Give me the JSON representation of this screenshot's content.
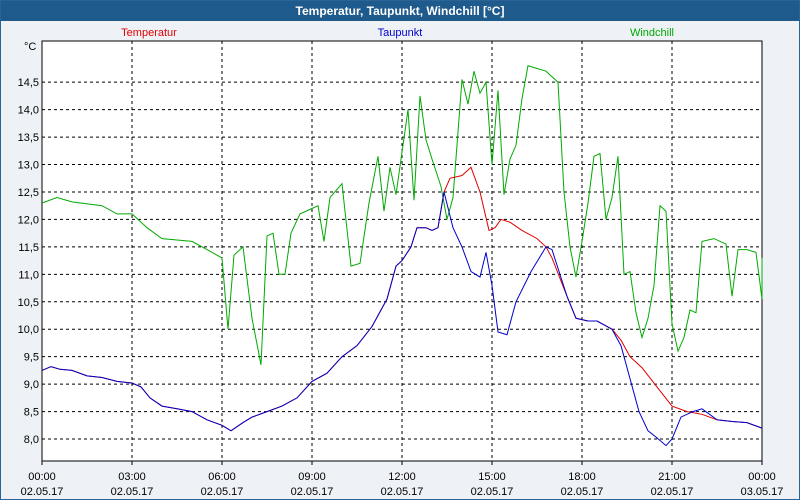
{
  "window": {
    "title": "Temperatur, Taupunkt, Windchill [°C]"
  },
  "chart_data": {
    "type": "line",
    "title": "Temperatur, Taupunkt, Windchill [°C]",
    "ylabel": "°C",
    "ylim": [
      7.6,
      15.25
    ],
    "yticks": [
      "8,0",
      "8,5",
      "9,0",
      "9,5",
      "10,0",
      "10,5",
      "11,0",
      "11,5",
      "12,0",
      "12,5",
      "13,0",
      "13,5",
      "14,0",
      "14,5"
    ],
    "xlim": [
      0,
      24
    ],
    "xticks": [
      {
        "time": "00:00",
        "date": "02.05.17"
      },
      {
        "time": "03:00",
        "date": "02.05.17"
      },
      {
        "time": "06:00",
        "date": "02.05.17"
      },
      {
        "time": "09:00",
        "date": "02.05.17"
      },
      {
        "time": "12:00",
        "date": "02.05.17"
      },
      {
        "time": "15:00",
        "date": "02.05.17"
      },
      {
        "time": "18:00",
        "date": "02.05.17"
      },
      {
        "time": "21:00",
        "date": "02.05.17"
      },
      {
        "time": "00:00",
        "date": "03.05.17"
      }
    ],
    "grid": true,
    "legend_position": "top",
    "series": [
      {
        "name": "Temperatur",
        "color": "#e00000",
        "points": [
          [
            0,
            9.25
          ],
          [
            0.3,
            9.32
          ],
          [
            0.6,
            9.27
          ],
          [
            1,
            9.25
          ],
          [
            1.5,
            9.15
          ],
          [
            2,
            9.12
          ],
          [
            2.5,
            9.05
          ],
          [
            3,
            9.02
          ],
          [
            3.3,
            8.95
          ],
          [
            3.6,
            8.75
          ],
          [
            4,
            8.6
          ],
          [
            4.5,
            8.55
          ],
          [
            5,
            8.5
          ],
          [
            5.5,
            8.35
          ],
          [
            6,
            8.25
          ],
          [
            6.3,
            8.15
          ],
          [
            6.7,
            8.3
          ],
          [
            7,
            8.4
          ],
          [
            7.5,
            8.5
          ],
          [
            8,
            8.6
          ],
          [
            8.5,
            8.75
          ],
          [
            9,
            9.05
          ],
          [
            9.5,
            9.2
          ],
          [
            10,
            9.5
          ],
          [
            10.5,
            9.7
          ],
          [
            11,
            10.05
          ],
          [
            11.5,
            10.55
          ],
          [
            11.8,
            11.15
          ],
          [
            12,
            11.25
          ],
          [
            12.3,
            11.5
          ],
          [
            12.5,
            11.85
          ],
          [
            12.8,
            11.85
          ],
          [
            13,
            11.8
          ],
          [
            13.2,
            11.85
          ],
          [
            13.4,
            12.5
          ],
          [
            13.6,
            12.75
          ],
          [
            14,
            12.8
          ],
          [
            14.3,
            12.95
          ],
          [
            14.6,
            12.5
          ],
          [
            14.9,
            11.8
          ],
          [
            15.1,
            11.85
          ],
          [
            15.3,
            12.0
          ],
          [
            15.6,
            11.95
          ],
          [
            16,
            11.8
          ],
          [
            16.5,
            11.65
          ],
          [
            16.8,
            11.5
          ],
          [
            17,
            11.3
          ],
          [
            17.5,
            10.6
          ],
          [
            17.8,
            10.2
          ],
          [
            18.2,
            10.15
          ],
          [
            18.5,
            10.15
          ],
          [
            19,
            10.0
          ],
          [
            19.3,
            9.8
          ],
          [
            19.6,
            9.5
          ],
          [
            20,
            9.3
          ],
          [
            20.5,
            8.95
          ],
          [
            21,
            8.6
          ],
          [
            21.5,
            8.5
          ],
          [
            22,
            8.45
          ],
          [
            22.5,
            8.35
          ],
          [
            23,
            8.32
          ],
          [
            23.5,
            8.3
          ],
          [
            24,
            8.2
          ]
        ]
      },
      {
        "name": "Taupunkt",
        "color": "#0000cc",
        "points": [
          [
            0,
            9.25
          ],
          [
            0.3,
            9.32
          ],
          [
            0.6,
            9.27
          ],
          [
            1,
            9.25
          ],
          [
            1.5,
            9.15
          ],
          [
            2,
            9.12
          ],
          [
            2.5,
            9.05
          ],
          [
            3,
            9.02
          ],
          [
            3.3,
            8.95
          ],
          [
            3.6,
            8.75
          ],
          [
            4,
            8.6
          ],
          [
            4.5,
            8.55
          ],
          [
            5,
            8.5
          ],
          [
            5.5,
            8.35
          ],
          [
            6,
            8.25
          ],
          [
            6.3,
            8.15
          ],
          [
            6.7,
            8.3
          ],
          [
            7,
            8.4
          ],
          [
            7.5,
            8.5
          ],
          [
            8,
            8.6
          ],
          [
            8.5,
            8.75
          ],
          [
            9,
            9.05
          ],
          [
            9.5,
            9.2
          ],
          [
            10,
            9.5
          ],
          [
            10.5,
            9.7
          ],
          [
            11,
            10.05
          ],
          [
            11.5,
            10.55
          ],
          [
            11.8,
            11.15
          ],
          [
            12,
            11.25
          ],
          [
            12.3,
            11.5
          ],
          [
            12.5,
            11.85
          ],
          [
            12.8,
            11.85
          ],
          [
            13,
            11.8
          ],
          [
            13.2,
            11.85
          ],
          [
            13.4,
            12.5
          ],
          [
            13.7,
            11.85
          ],
          [
            14,
            11.5
          ],
          [
            14.3,
            11.05
          ],
          [
            14.6,
            10.95
          ],
          [
            14.8,
            11.4
          ],
          [
            15,
            10.8
          ],
          [
            15.2,
            9.95
          ],
          [
            15.5,
            9.9
          ],
          [
            15.8,
            10.5
          ],
          [
            16.3,
            11.05
          ],
          [
            16.8,
            11.5
          ],
          [
            17,
            11.45
          ],
          [
            17.5,
            10.6
          ],
          [
            17.8,
            10.2
          ],
          [
            18.2,
            10.15
          ],
          [
            18.5,
            10.15
          ],
          [
            19,
            10.0
          ],
          [
            19.3,
            9.7
          ],
          [
            19.6,
            9.1
          ],
          [
            19.9,
            8.5
          ],
          [
            20.2,
            8.15
          ],
          [
            20.5,
            8.02
          ],
          [
            20.8,
            7.88
          ],
          [
            21,
            8.0
          ],
          [
            21.3,
            8.4
          ],
          [
            21.7,
            8.5
          ],
          [
            22,
            8.55
          ],
          [
            22.5,
            8.35
          ],
          [
            23,
            8.32
          ],
          [
            23.5,
            8.3
          ],
          [
            24,
            8.2
          ]
        ]
      },
      {
        "name": "Windchill",
        "color": "#00aa00",
        "points": [
          [
            0,
            12.3
          ],
          [
            0.5,
            12.4
          ],
          [
            1,
            12.32
          ],
          [
            2,
            12.25
          ],
          [
            2.5,
            12.1
          ],
          [
            3,
            12.1
          ],
          [
            3.5,
            11.85
          ],
          [
            4,
            11.65
          ],
          [
            5,
            11.6
          ],
          [
            5.5,
            11.45
          ],
          [
            6,
            11.3
          ],
          [
            6.2,
            10.0
          ],
          [
            6.4,
            11.35
          ],
          [
            6.7,
            11.5
          ],
          [
            7,
            10.2
          ],
          [
            7.3,
            9.35
          ],
          [
            7.5,
            11.7
          ],
          [
            7.7,
            11.75
          ],
          [
            7.9,
            11.0
          ],
          [
            8.1,
            11.0
          ],
          [
            8.3,
            11.75
          ],
          [
            8.6,
            12.1
          ],
          [
            9,
            12.2
          ],
          [
            9.2,
            12.25
          ],
          [
            9.4,
            11.6
          ],
          [
            9.6,
            12.4
          ],
          [
            10,
            12.65
          ],
          [
            10.3,
            11.15
          ],
          [
            10.6,
            11.2
          ],
          [
            10.9,
            12.3
          ],
          [
            11.2,
            13.15
          ],
          [
            11.4,
            12.15
          ],
          [
            11.6,
            12.95
          ],
          [
            11.8,
            12.45
          ],
          [
            12.2,
            14.0
          ],
          [
            12.4,
            12.35
          ],
          [
            12.6,
            14.25
          ],
          [
            12.8,
            13.45
          ],
          [
            13.0,
            13.1
          ],
          [
            13.3,
            12.6
          ],
          [
            13.5,
            12.0
          ],
          [
            13.7,
            12.4
          ],
          [
            14.0,
            14.55
          ],
          [
            14.2,
            14.1
          ],
          [
            14.4,
            14.7
          ],
          [
            14.6,
            14.3
          ],
          [
            14.8,
            14.5
          ],
          [
            15.0,
            13.0
          ],
          [
            15.2,
            14.35
          ],
          [
            15.4,
            12.45
          ],
          [
            15.6,
            13.1
          ],
          [
            15.8,
            13.35
          ],
          [
            16.0,
            14.2
          ],
          [
            16.2,
            14.8
          ],
          [
            16.5,
            14.75
          ],
          [
            16.8,
            14.7
          ],
          [
            17.2,
            14.5
          ],
          [
            17.4,
            12.5
          ],
          [
            17.6,
            11.5
          ],
          [
            17.8,
            10.95
          ],
          [
            18.0,
            11.6
          ],
          [
            18.2,
            12.3
          ],
          [
            18.4,
            13.15
          ],
          [
            18.6,
            13.2
          ],
          [
            18.8,
            12.0
          ],
          [
            19.0,
            12.4
          ],
          [
            19.2,
            13.15
          ],
          [
            19.4,
            11.0
          ],
          [
            19.6,
            11.05
          ],
          [
            19.8,
            10.3
          ],
          [
            20.0,
            9.85
          ],
          [
            20.2,
            10.2
          ],
          [
            20.4,
            10.8
          ],
          [
            20.6,
            12.25
          ],
          [
            20.8,
            12.15
          ],
          [
            21.0,
            10.1
          ],
          [
            21.2,
            9.6
          ],
          [
            21.4,
            9.85
          ],
          [
            21.6,
            10.35
          ],
          [
            21.8,
            10.3
          ],
          [
            22.0,
            11.6
          ],
          [
            22.4,
            11.65
          ],
          [
            22.8,
            11.55
          ],
          [
            23.0,
            10.6
          ],
          [
            23.2,
            11.45
          ],
          [
            23.5,
            11.45
          ],
          [
            23.8,
            11.4
          ],
          [
            24.0,
            10.55
          ],
          [
            24.2,
            11.3
          ]
        ]
      }
    ]
  }
}
